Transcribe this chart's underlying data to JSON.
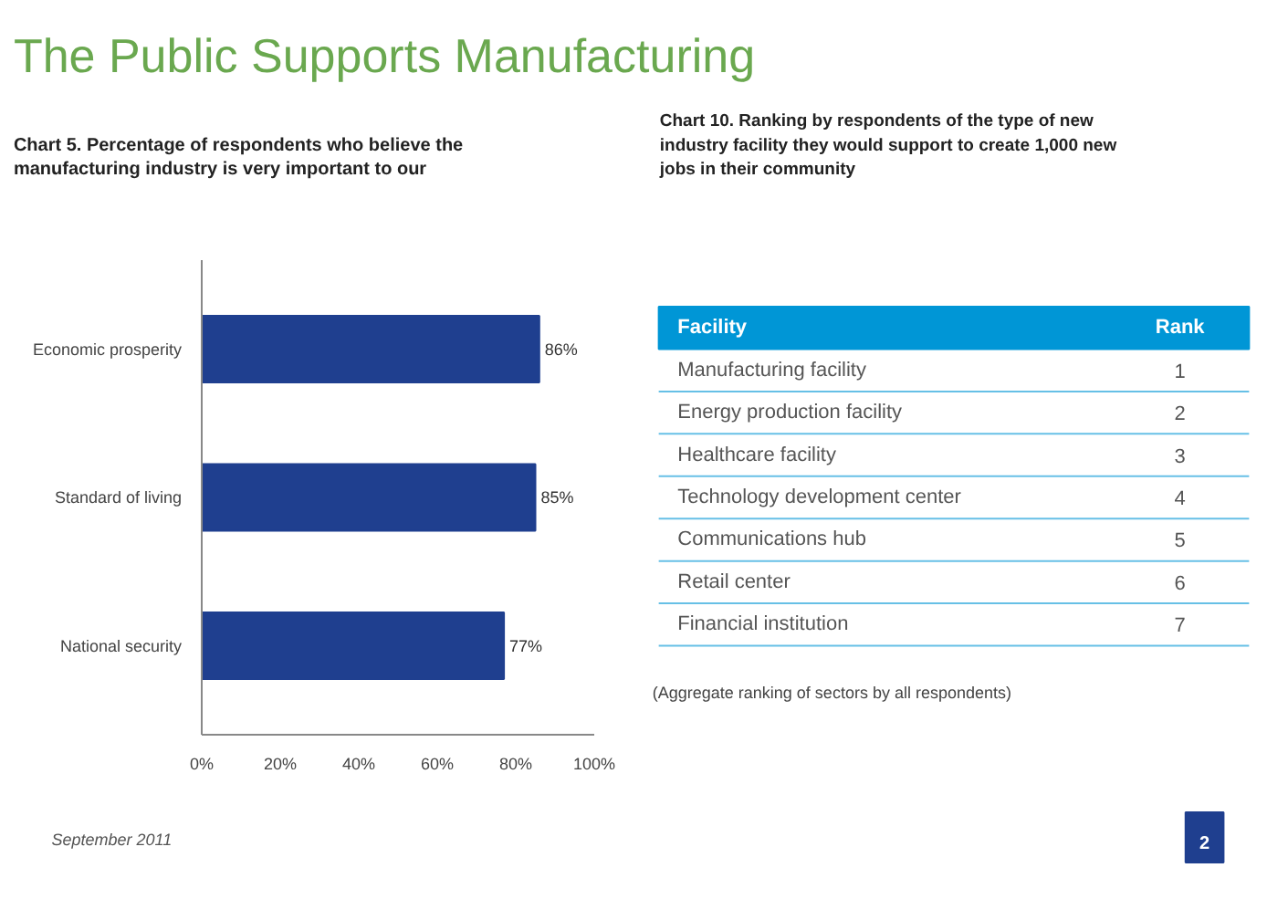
{
  "chart_data": [
    {
      "type": "bar",
      "orientation": "horizontal",
      "title": "Chart 5.  Percentage of respondents who believe the manufacturing industry is very important to our",
      "categories": [
        "Economic prosperity",
        "Standard of living",
        "National security"
      ],
      "values": [
        86,
        85,
        77
      ],
      "color": "#1f3f8f",
      "value_labels": [
        "86%",
        "85%",
        "77%"
      ],
      "xlim": [
        0,
        100
      ],
      "xticks": [
        {
          "value": 0,
          "label": "0%"
        },
        {
          "value": 20,
          "label": "20%"
        },
        {
          "value": 40,
          "label": "40%"
        },
        {
          "value": 60,
          "label": "60%"
        },
        {
          "value": 80,
          "label": "80%"
        },
        {
          "value": 100,
          "label": "100%"
        }
      ],
      "grid": false,
      "annotations": [
        "The Public Supports Manufacturing",
        "September 2011",
        "2"
      ]
    },
    {
      "type": "other",
      "title": "Chart 10. Ranking by respondents of the type of new industry facility they would support to create 1,000 new jobs in their community",
      "xlabel": "Facility",
      "ylabel": "Rank",
      "color": "#0096d6",
      "categories": [
        "Manufacturing facility",
        "Energy production facility",
        "Healthcare facility",
        "Technology development center",
        "Communications hub",
        "Retail center",
        "Financial institution"
      ],
      "values": [
        1,
        2,
        3,
        4,
        5,
        6,
        7
      ],
      "data_labels": true,
      "annotations": [
        "(Aggregate ranking of sectors by all respondents)"
      ]
    }
  ]
}
